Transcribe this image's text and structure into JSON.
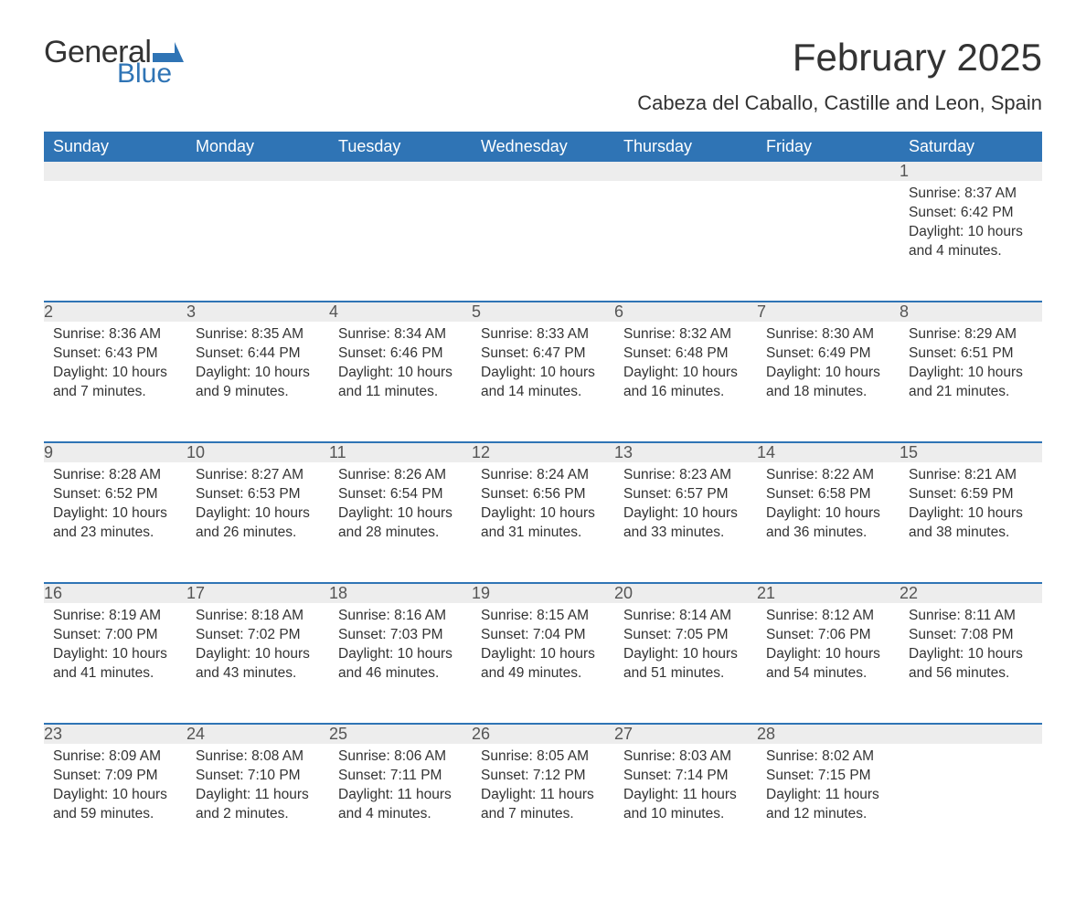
{
  "brand": {
    "word1": "General",
    "word2": "Blue",
    "word1_color": "#333333",
    "word2_color": "#2f74b5",
    "mark_color": "#2f74b5"
  },
  "title": "February 2025",
  "location": "Cabeza del Caballo, Castille and Leon, Spain",
  "colors": {
    "header_bg": "#2f74b5",
    "header_text": "#ffffff",
    "daynum_bg": "#ededed",
    "row_border": "#2f74b5",
    "body_text": "#333333",
    "background": "#ffffff"
  },
  "typography": {
    "title_fontsize": 42,
    "location_fontsize": 22,
    "weekday_fontsize": 18,
    "daynum_fontsize": 18,
    "info_fontsize": 15.5,
    "logo_general_fontsize": 34,
    "logo_blue_fontsize": 30
  },
  "weekdays": [
    "Sunday",
    "Monday",
    "Tuesday",
    "Wednesday",
    "Thursday",
    "Friday",
    "Saturday"
  ],
  "weeks": [
    [
      {
        "blank": true
      },
      {
        "blank": true
      },
      {
        "blank": true
      },
      {
        "blank": true
      },
      {
        "blank": true
      },
      {
        "blank": true
      },
      {
        "day": "1",
        "sunrise": "Sunrise: 8:37 AM",
        "sunset": "Sunset: 6:42 PM",
        "daylight": "Daylight: 10 hours and 4 minutes."
      }
    ],
    [
      {
        "day": "2",
        "sunrise": "Sunrise: 8:36 AM",
        "sunset": "Sunset: 6:43 PM",
        "daylight": "Daylight: 10 hours and 7 minutes."
      },
      {
        "day": "3",
        "sunrise": "Sunrise: 8:35 AM",
        "sunset": "Sunset: 6:44 PM",
        "daylight": "Daylight: 10 hours and 9 minutes."
      },
      {
        "day": "4",
        "sunrise": "Sunrise: 8:34 AM",
        "sunset": "Sunset: 6:46 PM",
        "daylight": "Daylight: 10 hours and 11 minutes."
      },
      {
        "day": "5",
        "sunrise": "Sunrise: 8:33 AM",
        "sunset": "Sunset: 6:47 PM",
        "daylight": "Daylight: 10 hours and 14 minutes."
      },
      {
        "day": "6",
        "sunrise": "Sunrise: 8:32 AM",
        "sunset": "Sunset: 6:48 PM",
        "daylight": "Daylight: 10 hours and 16 minutes."
      },
      {
        "day": "7",
        "sunrise": "Sunrise: 8:30 AM",
        "sunset": "Sunset: 6:49 PM",
        "daylight": "Daylight: 10 hours and 18 minutes."
      },
      {
        "day": "8",
        "sunrise": "Sunrise: 8:29 AM",
        "sunset": "Sunset: 6:51 PM",
        "daylight": "Daylight: 10 hours and 21 minutes."
      }
    ],
    [
      {
        "day": "9",
        "sunrise": "Sunrise: 8:28 AM",
        "sunset": "Sunset: 6:52 PM",
        "daylight": "Daylight: 10 hours and 23 minutes."
      },
      {
        "day": "10",
        "sunrise": "Sunrise: 8:27 AM",
        "sunset": "Sunset: 6:53 PM",
        "daylight": "Daylight: 10 hours and 26 minutes."
      },
      {
        "day": "11",
        "sunrise": "Sunrise: 8:26 AM",
        "sunset": "Sunset: 6:54 PM",
        "daylight": "Daylight: 10 hours and 28 minutes."
      },
      {
        "day": "12",
        "sunrise": "Sunrise: 8:24 AM",
        "sunset": "Sunset: 6:56 PM",
        "daylight": "Daylight: 10 hours and 31 minutes."
      },
      {
        "day": "13",
        "sunrise": "Sunrise: 8:23 AM",
        "sunset": "Sunset: 6:57 PM",
        "daylight": "Daylight: 10 hours and 33 minutes."
      },
      {
        "day": "14",
        "sunrise": "Sunrise: 8:22 AM",
        "sunset": "Sunset: 6:58 PM",
        "daylight": "Daylight: 10 hours and 36 minutes."
      },
      {
        "day": "15",
        "sunrise": "Sunrise: 8:21 AM",
        "sunset": "Sunset: 6:59 PM",
        "daylight": "Daylight: 10 hours and 38 minutes."
      }
    ],
    [
      {
        "day": "16",
        "sunrise": "Sunrise: 8:19 AM",
        "sunset": "Sunset: 7:00 PM",
        "daylight": "Daylight: 10 hours and 41 minutes."
      },
      {
        "day": "17",
        "sunrise": "Sunrise: 8:18 AM",
        "sunset": "Sunset: 7:02 PM",
        "daylight": "Daylight: 10 hours and 43 minutes."
      },
      {
        "day": "18",
        "sunrise": "Sunrise: 8:16 AM",
        "sunset": "Sunset: 7:03 PM",
        "daylight": "Daylight: 10 hours and 46 minutes."
      },
      {
        "day": "19",
        "sunrise": "Sunrise: 8:15 AM",
        "sunset": "Sunset: 7:04 PM",
        "daylight": "Daylight: 10 hours and 49 minutes."
      },
      {
        "day": "20",
        "sunrise": "Sunrise: 8:14 AM",
        "sunset": "Sunset: 7:05 PM",
        "daylight": "Daylight: 10 hours and 51 minutes."
      },
      {
        "day": "21",
        "sunrise": "Sunrise: 8:12 AM",
        "sunset": "Sunset: 7:06 PM",
        "daylight": "Daylight: 10 hours and 54 minutes."
      },
      {
        "day": "22",
        "sunrise": "Sunrise: 8:11 AM",
        "sunset": "Sunset: 7:08 PM",
        "daylight": "Daylight: 10 hours and 56 minutes."
      }
    ],
    [
      {
        "day": "23",
        "sunrise": "Sunrise: 8:09 AM",
        "sunset": "Sunset: 7:09 PM",
        "daylight": "Daylight: 10 hours and 59 minutes."
      },
      {
        "day": "24",
        "sunrise": "Sunrise: 8:08 AM",
        "sunset": "Sunset: 7:10 PM",
        "daylight": "Daylight: 11 hours and 2 minutes."
      },
      {
        "day": "25",
        "sunrise": "Sunrise: 8:06 AM",
        "sunset": "Sunset: 7:11 PM",
        "daylight": "Daylight: 11 hours and 4 minutes."
      },
      {
        "day": "26",
        "sunrise": "Sunrise: 8:05 AM",
        "sunset": "Sunset: 7:12 PM",
        "daylight": "Daylight: 11 hours and 7 minutes."
      },
      {
        "day": "27",
        "sunrise": "Sunrise: 8:03 AM",
        "sunset": "Sunset: 7:14 PM",
        "daylight": "Daylight: 11 hours and 10 minutes."
      },
      {
        "day": "28",
        "sunrise": "Sunrise: 8:02 AM",
        "sunset": "Sunset: 7:15 PM",
        "daylight": "Daylight: 11 hours and 12 minutes."
      },
      {
        "blank": true
      }
    ]
  ]
}
